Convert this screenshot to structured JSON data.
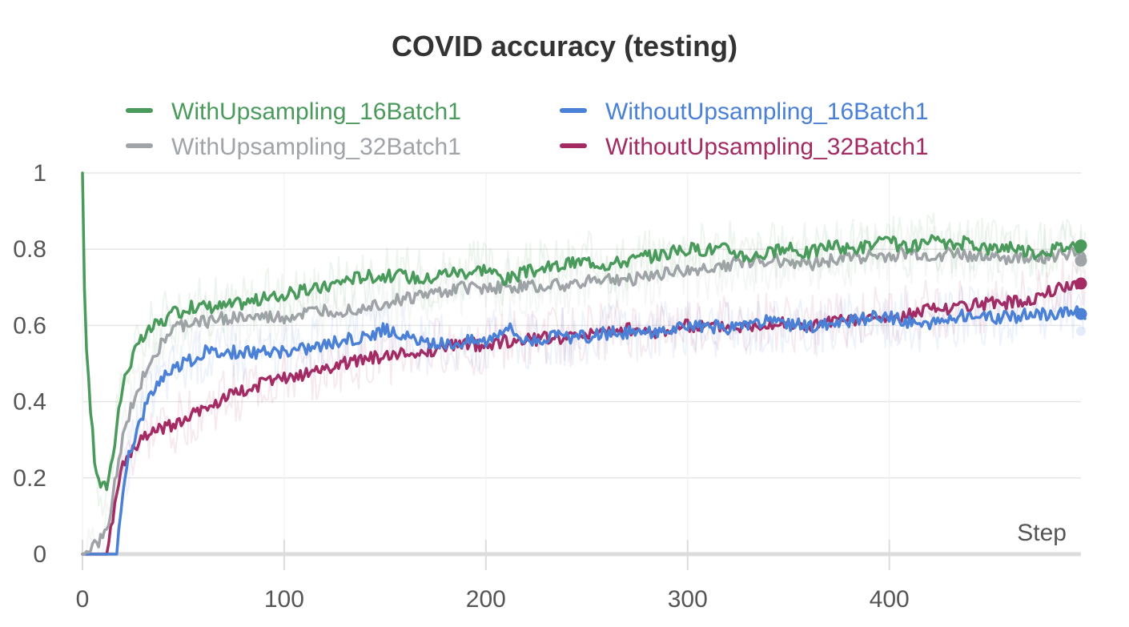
{
  "chart_data": {
    "type": "line",
    "title": "COVID accuracy (testing)",
    "xlabel": "Step",
    "ylabel": "",
    "xlim": [
      0,
      495
    ],
    "ylim": [
      0,
      1
    ],
    "x_ticks": [
      0,
      100,
      200,
      300,
      400
    ],
    "y_ticks": [
      0,
      0.2,
      0.4,
      0.6,
      0.8,
      1
    ],
    "x_tick_labels": [
      "0",
      "100",
      "200",
      "300",
      "400"
    ],
    "y_tick_labels": [
      "0",
      "0.2",
      "0.4",
      "0.6",
      "0.8",
      "1"
    ],
    "grid": true,
    "legend_position": "top",
    "series": [
      {
        "name": "WithUpsampling_16Batch1",
        "color": "#4a9a5c",
        "x": [
          0,
          1,
          2,
          4,
          6,
          8,
          10,
          12,
          14,
          16,
          18,
          20,
          22,
          25,
          28,
          32,
          36,
          40,
          45,
          50,
          55,
          60,
          70,
          80,
          90,
          100,
          110,
          120,
          130,
          140,
          150,
          160,
          170,
          180,
          190,
          200,
          210,
          220,
          230,
          240,
          250,
          260,
          270,
          280,
          290,
          300,
          310,
          320,
          330,
          340,
          350,
          360,
          370,
          380,
          390,
          400,
          410,
          420,
          430,
          440,
          450,
          460,
          470,
          480,
          490,
          497
        ],
        "y": [
          1.0,
          0.7,
          0.55,
          0.38,
          0.25,
          0.19,
          0.175,
          0.18,
          0.23,
          0.3,
          0.38,
          0.44,
          0.48,
          0.52,
          0.55,
          0.58,
          0.6,
          0.61,
          0.63,
          0.64,
          0.65,
          0.65,
          0.65,
          0.66,
          0.67,
          0.68,
          0.69,
          0.7,
          0.72,
          0.73,
          0.73,
          0.73,
          0.72,
          0.74,
          0.74,
          0.75,
          0.72,
          0.74,
          0.75,
          0.76,
          0.77,
          0.76,
          0.77,
          0.78,
          0.79,
          0.8,
          0.8,
          0.8,
          0.78,
          0.79,
          0.8,
          0.79,
          0.81,
          0.8,
          0.81,
          0.82,
          0.8,
          0.82,
          0.81,
          0.82,
          0.8,
          0.81,
          0.79,
          0.8,
          0.81,
          0.81
        ]
      },
      {
        "name": "WithUpsampling_32Batch1",
        "color": "#a0a4a8",
        "x": [
          0,
          4,
          8,
          12,
          16,
          20,
          24,
          28,
          32,
          36,
          40,
          45,
          50,
          55,
          60,
          70,
          80,
          90,
          100,
          110,
          120,
          130,
          140,
          150,
          160,
          170,
          180,
          190,
          200,
          210,
          220,
          230,
          240,
          250,
          260,
          270,
          280,
          290,
          300,
          310,
          320,
          330,
          340,
          350,
          360,
          370,
          380,
          390,
          400,
          410,
          420,
          430,
          440,
          450,
          460,
          470,
          480,
          490,
          497
        ],
        "y": [
          0.0,
          0.01,
          0.03,
          0.06,
          0.18,
          0.3,
          0.38,
          0.44,
          0.49,
          0.53,
          0.56,
          0.59,
          0.6,
          0.61,
          0.61,
          0.62,
          0.62,
          0.62,
          0.62,
          0.63,
          0.64,
          0.64,
          0.65,
          0.66,
          0.67,
          0.68,
          0.69,
          0.7,
          0.7,
          0.7,
          0.7,
          0.71,
          0.7,
          0.72,
          0.72,
          0.72,
          0.73,
          0.74,
          0.74,
          0.75,
          0.76,
          0.77,
          0.77,
          0.77,
          0.76,
          0.77,
          0.78,
          0.78,
          0.78,
          0.79,
          0.78,
          0.79,
          0.78,
          0.79,
          0.77,
          0.78,
          0.78,
          0.79,
          0.77
        ]
      },
      {
        "name": "WithoutUpsampling_16Batch1",
        "color": "#4a80d6",
        "x": [
          0,
          5,
          10,
          15,
          17,
          19,
          21,
          24,
          28,
          32,
          36,
          40,
          45,
          50,
          55,
          60,
          70,
          80,
          90,
          100,
          110,
          120,
          130,
          140,
          150,
          160,
          170,
          180,
          190,
          200,
          210,
          220,
          230,
          240,
          250,
          260,
          270,
          280,
          290,
          300,
          310,
          320,
          330,
          340,
          350,
          360,
          370,
          380,
          390,
          400,
          410,
          420,
          430,
          440,
          450,
          460,
          470,
          480,
          490,
          497
        ],
        "y": [
          0.0,
          0.0,
          0.0,
          0.0,
          0.0,
          0.1,
          0.2,
          0.28,
          0.34,
          0.4,
          0.44,
          0.47,
          0.49,
          0.5,
          0.51,
          0.53,
          0.53,
          0.53,
          0.53,
          0.53,
          0.54,
          0.55,
          0.56,
          0.57,
          0.59,
          0.57,
          0.55,
          0.55,
          0.56,
          0.56,
          0.6,
          0.56,
          0.57,
          0.57,
          0.57,
          0.58,
          0.58,
          0.58,
          0.59,
          0.59,
          0.6,
          0.59,
          0.6,
          0.61,
          0.6,
          0.6,
          0.6,
          0.61,
          0.62,
          0.62,
          0.61,
          0.6,
          0.62,
          0.63,
          0.62,
          0.62,
          0.63,
          0.63,
          0.64,
          0.63
        ]
      },
      {
        "name": "WithoutUpsampling_32Batch1",
        "color": "#a32a62",
        "x": [
          0,
          5,
          10,
          12,
          14,
          16,
          18,
          21,
          25,
          30,
          35,
          40,
          45,
          50,
          55,
          60,
          70,
          80,
          90,
          100,
          110,
          120,
          130,
          140,
          150,
          160,
          170,
          180,
          190,
          200,
          210,
          220,
          230,
          240,
          250,
          260,
          270,
          280,
          290,
          300,
          310,
          320,
          330,
          340,
          350,
          360,
          370,
          380,
          390,
          400,
          410,
          420,
          430,
          440,
          450,
          460,
          470,
          480,
          490,
          497
        ],
        "y": [
          0.0,
          0.0,
          0.0,
          0.0,
          0.06,
          0.14,
          0.2,
          0.24,
          0.27,
          0.3,
          0.32,
          0.33,
          0.34,
          0.35,
          0.37,
          0.38,
          0.41,
          0.43,
          0.45,
          0.46,
          0.47,
          0.49,
          0.5,
          0.51,
          0.52,
          0.53,
          0.53,
          0.55,
          0.55,
          0.55,
          0.56,
          0.56,
          0.57,
          0.57,
          0.58,
          0.58,
          0.59,
          0.58,
          0.59,
          0.6,
          0.6,
          0.6,
          0.6,
          0.61,
          0.6,
          0.6,
          0.61,
          0.61,
          0.62,
          0.62,
          0.63,
          0.64,
          0.64,
          0.65,
          0.66,
          0.66,
          0.67,
          0.69,
          0.71,
          0.71
        ]
      }
    ]
  }
}
